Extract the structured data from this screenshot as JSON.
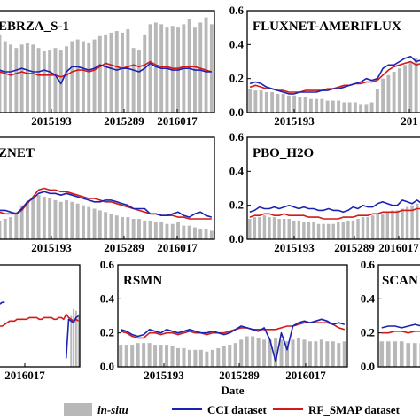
{
  "legend": {
    "insitu": "in-situ",
    "cci": "CCI dataset",
    "rf": "RF_SMAP dataset"
  },
  "colors": {
    "insitu": "#b8b8b8",
    "cci": "#1a22b4",
    "rf": "#d11a1a"
  },
  "chart_data": [
    {
      "type": "bar+line",
      "title": "EBRZA_S-1",
      "yticks": [],
      "xticks": [
        "2015193",
        "2015289",
        "2016017"
      ],
      "xlabel": "",
      "insitu": [
        0.22,
        0.46,
        0.42,
        0.4,
        0.38,
        0.4,
        0.41,
        0.4,
        0.38,
        0.36,
        0.37,
        0.38,
        0.37,
        0.39,
        0.42,
        0.43,
        0.42,
        0.41,
        0.43,
        0.45,
        0.46,
        0.47,
        0.48,
        0.47,
        0.49,
        0.38,
        0.37,
        0.46,
        0.52,
        0.53,
        0.52,
        0.5,
        0.51,
        0.5,
        0.52,
        0.55,
        0.5,
        0.53,
        0.56,
        0.52
      ],
      "cci": [
        0.25,
        0.25,
        0.24,
        0.24,
        0.25,
        0.26,
        0.25,
        0.24,
        0.24,
        0.25,
        0.24,
        0.22,
        0.17,
        0.24,
        0.27,
        0.27,
        0.26,
        0.25,
        0.26,
        0.28,
        0.27,
        0.26,
        0.25,
        0.26,
        0.26,
        0.25,
        0.24,
        0.26,
        0.29,
        0.27,
        0.26,
        0.26,
        0.25,
        0.25,
        0.26,
        0.26,
        0.25,
        0.25,
        0.24,
        0.24
      ],
      "rf": [
        0.25,
        0.24,
        0.23,
        0.22,
        0.23,
        0.24,
        0.23,
        0.23,
        0.22,
        0.22,
        0.22,
        0.22,
        0.21,
        0.22,
        0.24,
        0.25,
        0.25,
        0.24,
        0.25,
        0.27,
        0.29,
        0.28,
        0.27,
        0.26,
        0.27,
        0.28,
        0.27,
        0.28,
        0.3,
        0.28,
        0.27,
        0.27,
        0.26,
        0.26,
        0.27,
        0.27,
        0.27,
        0.26,
        0.25,
        0.24
      ]
    },
    {
      "type": "bar+line",
      "title": "FLUXNET-AMERIFLUX",
      "yticks": [
        "0.6",
        "0.4",
        "0.2",
        "0.0"
      ],
      "ylim": [
        0,
        0.6
      ],
      "xticks": [
        "2015193",
        "201"
      ],
      "xlabel": "",
      "insitu": [
        0.14,
        0.13,
        0.13,
        0.12,
        0.12,
        0.11,
        0.11,
        0.1,
        0.1,
        0.09,
        0.09,
        0.08,
        0.08,
        0.08,
        0.07,
        0.07,
        0.07,
        0.06,
        0.06,
        0.06,
        0.05,
        0.05,
        0.06,
        0.14,
        0.2,
        0.22,
        0.24,
        0.26,
        0.28,
        0.3,
        0.32,
        0.33
      ],
      "cci": [
        0.17,
        0.18,
        0.17,
        0.15,
        0.14,
        0.13,
        0.12,
        0.11,
        0.11,
        0.12,
        0.12,
        0.12,
        0.12,
        0.13,
        0.13,
        0.14,
        0.14,
        0.15,
        0.16,
        0.17,
        0.18,
        0.2,
        0.19,
        0.2,
        0.26,
        0.28,
        0.28,
        0.3,
        0.32,
        0.33,
        0.3,
        0.31
      ],
      "rf": [
        0.15,
        0.16,
        0.15,
        0.14,
        0.14,
        0.13,
        0.13,
        0.12,
        0.12,
        0.12,
        0.13,
        0.13,
        0.13,
        0.13,
        0.14,
        0.14,
        0.15,
        0.16,
        0.16,
        0.17,
        0.17,
        0.18,
        0.18,
        0.19,
        0.22,
        0.25,
        0.27,
        0.28,
        0.29,
        0.3,
        0.28,
        0.29
      ]
    },
    {
      "type": "bar+line",
      "title": "ZNET",
      "yticks": [],
      "xticks": [
        "2015193",
        "2015289",
        "2016017"
      ],
      "xlabel": "",
      "insitu": [
        0.1,
        0.11,
        0.12,
        0.13,
        0.16,
        0.2,
        0.22,
        0.24,
        0.26,
        0.25,
        0.24,
        0.23,
        0.22,
        0.23,
        0.22,
        0.21,
        0.2,
        0.19,
        0.18,
        0.17,
        0.16,
        0.15,
        0.14,
        0.13,
        0.13,
        0.12,
        0.12,
        0.11,
        0.11,
        0.1,
        0.1,
        0.09,
        0.09,
        0.1,
        0.08,
        0.08,
        0.07,
        0.06,
        0.06,
        0.05
      ],
      "cci": [
        0.15,
        0.17,
        0.17,
        0.16,
        0.15,
        0.18,
        0.22,
        0.24,
        0.27,
        0.28,
        0.27,
        0.27,
        0.26,
        0.27,
        0.26,
        0.25,
        0.24,
        0.23,
        0.22,
        0.22,
        0.23,
        0.23,
        0.22,
        0.21,
        0.2,
        0.18,
        0.18,
        0.18,
        0.15,
        0.15,
        0.14,
        0.14,
        0.15,
        0.16,
        0.14,
        0.13,
        0.15,
        0.16,
        0.14,
        0.13
      ],
      "rf": [
        0.16,
        0.16,
        0.15,
        0.15,
        0.15,
        0.17,
        0.21,
        0.25,
        0.29,
        0.3,
        0.29,
        0.29,
        0.28,
        0.28,
        0.27,
        0.26,
        0.25,
        0.24,
        0.24,
        0.23,
        0.22,
        0.22,
        0.21,
        0.2,
        0.19,
        0.18,
        0.17,
        0.16,
        0.15,
        0.15,
        0.14,
        0.14,
        0.14,
        0.13,
        0.13,
        0.12,
        0.12,
        0.12,
        0.12,
        0.12
      ]
    },
    {
      "type": "bar+line",
      "title": "PBO_H2O",
      "yticks": [
        "0.6",
        "0.4",
        "0.2",
        "0.0"
      ],
      "ylim": [
        0,
        0.6
      ],
      "xticks": [
        "2015193",
        "2015289",
        "2016017"
      ],
      "xlabel": "",
      "insitu": [
        0.12,
        0.13,
        0.13,
        0.14,
        0.13,
        0.13,
        0.12,
        0.12,
        0.12,
        0.11,
        0.11,
        0.1,
        0.1,
        0.1,
        0.09,
        0.09,
        0.09,
        0.09,
        0.1,
        0.1,
        0.11,
        0.11,
        0.12,
        0.13,
        0.13,
        0.14,
        0.15,
        0.15,
        0.16,
        0.17,
        0.17,
        0.18,
        0.19,
        0.2,
        0.21,
        0.22
      ],
      "cci": [
        0.16,
        0.17,
        0.19,
        0.18,
        0.18,
        0.19,
        0.18,
        0.19,
        0.2,
        0.19,
        0.18,
        0.19,
        0.18,
        0.18,
        0.17,
        0.17,
        0.18,
        0.17,
        0.17,
        0.16,
        0.17,
        0.19,
        0.18,
        0.2,
        0.19,
        0.19,
        0.21,
        0.22,
        0.21,
        0.2,
        0.2,
        0.23,
        0.22,
        0.21,
        0.23,
        0.21
      ],
      "rf": [
        0.13,
        0.14,
        0.14,
        0.15,
        0.15,
        0.14,
        0.14,
        0.15,
        0.14,
        0.14,
        0.14,
        0.14,
        0.13,
        0.13,
        0.13,
        0.12,
        0.12,
        0.12,
        0.12,
        0.13,
        0.13,
        0.13,
        0.14,
        0.14,
        0.14,
        0.15,
        0.15,
        0.16,
        0.16,
        0.16,
        0.16,
        0.17,
        0.17,
        0.17,
        0.18,
        0.18
      ]
    },
    {
      "type": "bar+line",
      "title": "",
      "yticks": [],
      "xticks": [
        "2016017"
      ],
      "xlabel": "",
      "insitu": [
        null,
        null,
        null,
        null,
        null,
        null,
        null,
        null,
        null,
        null,
        null,
        null,
        null,
        null,
        null,
        null,
        null,
        null,
        null,
        null,
        null,
        null,
        null,
        null,
        null,
        null,
        null,
        null,
        null,
        null,
        null,
        null,
        0.3,
        0.34,
        0.33,
        0.31
      ],
      "cci": [
        0.34,
        0.35,
        0.36,
        0.37,
        0.38,
        0.38,
        null,
        null,
        null,
        null,
        null,
        null,
        null,
        null,
        null,
        null,
        null,
        null,
        null,
        null,
        null,
        null,
        null,
        null,
        null,
        null,
        null,
        null,
        null,
        null,
        0.05,
        0.28,
        0.27,
        0.26,
        0.29,
        0.3
      ],
      "rf": [
        0.22,
        0.22,
        0.23,
        0.24,
        0.24,
        0.25,
        0.26,
        0.27,
        0.27,
        0.27,
        0.28,
        0.28,
        0.28,
        0.28,
        0.28,
        0.29,
        0.29,
        0.29,
        0.29,
        0.28,
        0.28,
        0.29,
        0.29,
        0.29,
        0.29,
        0.28,
        0.28,
        0.29,
        0.29,
        0.28,
        0.31,
        0.29,
        0.28,
        0.27,
        0.28,
        0.27
      ]
    },
    {
      "type": "bar+line",
      "title": "RSMN",
      "yticks": [
        "0.6",
        "0.4",
        "0.2",
        "0.0"
      ],
      "ylim": [
        0,
        0.6
      ],
      "xticks": [
        "2015193",
        "2015289",
        "2016017"
      ],
      "xlabel": "Date",
      "insitu": [
        0.13,
        0.13,
        0.13,
        0.14,
        0.14,
        0.14,
        0.13,
        0.13,
        0.13,
        0.12,
        0.11,
        0.11,
        0.1,
        0.1,
        0.1,
        0.09,
        0.1,
        0.11,
        0.12,
        0.13,
        0.14,
        0.16,
        0.18,
        0.18,
        0.17,
        0.16,
        0.16,
        0.17,
        0.16,
        0.15,
        0.16,
        0.17,
        0.16,
        0.15,
        0.15,
        0.16,
        0.15,
        0.15,
        0.14,
        0.15
      ],
      "cci": [
        0.22,
        0.21,
        0.19,
        0.18,
        0.19,
        0.22,
        0.21,
        0.2,
        0.22,
        0.21,
        0.2,
        0.21,
        0.22,
        0.21,
        0.2,
        0.2,
        0.21,
        0.2,
        0.19,
        0.2,
        0.22,
        0.24,
        0.23,
        0.22,
        0.21,
        0.23,
        0.16,
        0.03,
        0.2,
        0.1,
        0.24,
        0.26,
        0.27,
        0.26,
        0.27,
        0.28,
        0.27,
        0.25,
        0.26,
        0.25
      ],
      "rf": [
        0.21,
        0.2,
        0.18,
        0.17,
        0.17,
        0.2,
        0.2,
        0.19,
        0.2,
        0.2,
        0.19,
        0.2,
        0.21,
        0.2,
        0.2,
        0.19,
        0.2,
        0.2,
        0.2,
        0.21,
        0.22,
        0.23,
        0.23,
        0.22,
        0.22,
        0.22,
        0.22,
        0.22,
        0.23,
        0.24,
        0.24,
        0.25,
        0.26,
        0.26,
        0.26,
        0.26,
        0.26,
        0.25,
        0.23,
        0.22
      ]
    },
    {
      "type": "bar+line",
      "title": "SCAN",
      "yticks": [
        "0.6",
        "0.4",
        "0.2",
        "0.0"
      ],
      "ylim": [
        0,
        0.6
      ],
      "xticks": [],
      "xlabel": "",
      "insitu": [
        0.15,
        0.15,
        0.15,
        0.15,
        0.14,
        0.14,
        0.14,
        0.14
      ],
      "cci": [
        0.23,
        0.24,
        0.24,
        0.23,
        0.24,
        0.25,
        0.24,
        0.24
      ],
      "rf": [
        0.2,
        0.2,
        0.21,
        0.21,
        0.2,
        0.21,
        0.21,
        0.21
      ]
    }
  ]
}
